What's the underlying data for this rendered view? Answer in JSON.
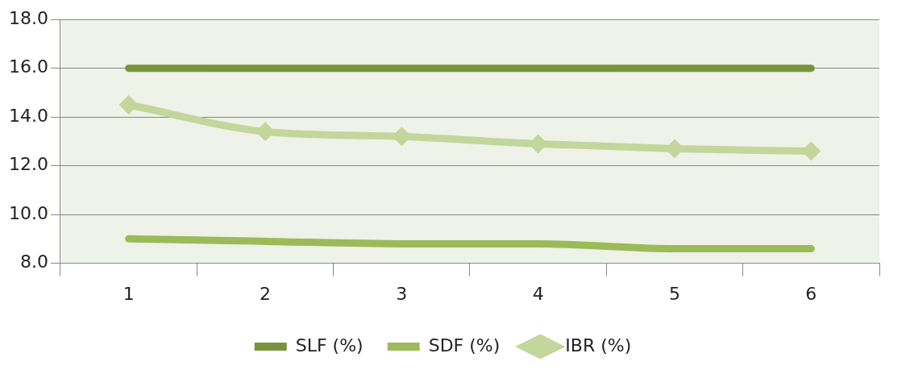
{
  "chart_data": {
    "type": "line",
    "categories": [
      "1",
      "2",
      "3",
      "4",
      "5",
      "6"
    ],
    "series": [
      {
        "name": "SLF (%)",
        "color": "#77933c",
        "marker": "none",
        "values": [
          16.0,
          16.0,
          16.0,
          16.0,
          16.0,
          16.0
        ]
      },
      {
        "name": "SDF (%)",
        "color": "#9bbb59",
        "marker": "none",
        "values": [
          9.0,
          8.9,
          8.8,
          8.8,
          8.6,
          8.6
        ]
      },
      {
        "name": "IBR (%)",
        "color": "#c3d69b",
        "marker": "diamond",
        "values": [
          14.5,
          13.4,
          13.2,
          12.9,
          12.7,
          12.6
        ]
      }
    ],
    "ylim": [
      8.0,
      18.0
    ],
    "yticks": [
      {
        "value": 8,
        "label": "8.0"
      },
      {
        "value": 10,
        "label": "10.0"
      },
      {
        "value": 12,
        "label": "12.0"
      },
      {
        "value": 14,
        "label": "14.0"
      },
      {
        "value": 16,
        "label": "16.0"
      },
      {
        "value": 18,
        "label": "18.0"
      }
    ],
    "grid": "y",
    "legend": "bottom",
    "line_style": "solid"
  }
}
